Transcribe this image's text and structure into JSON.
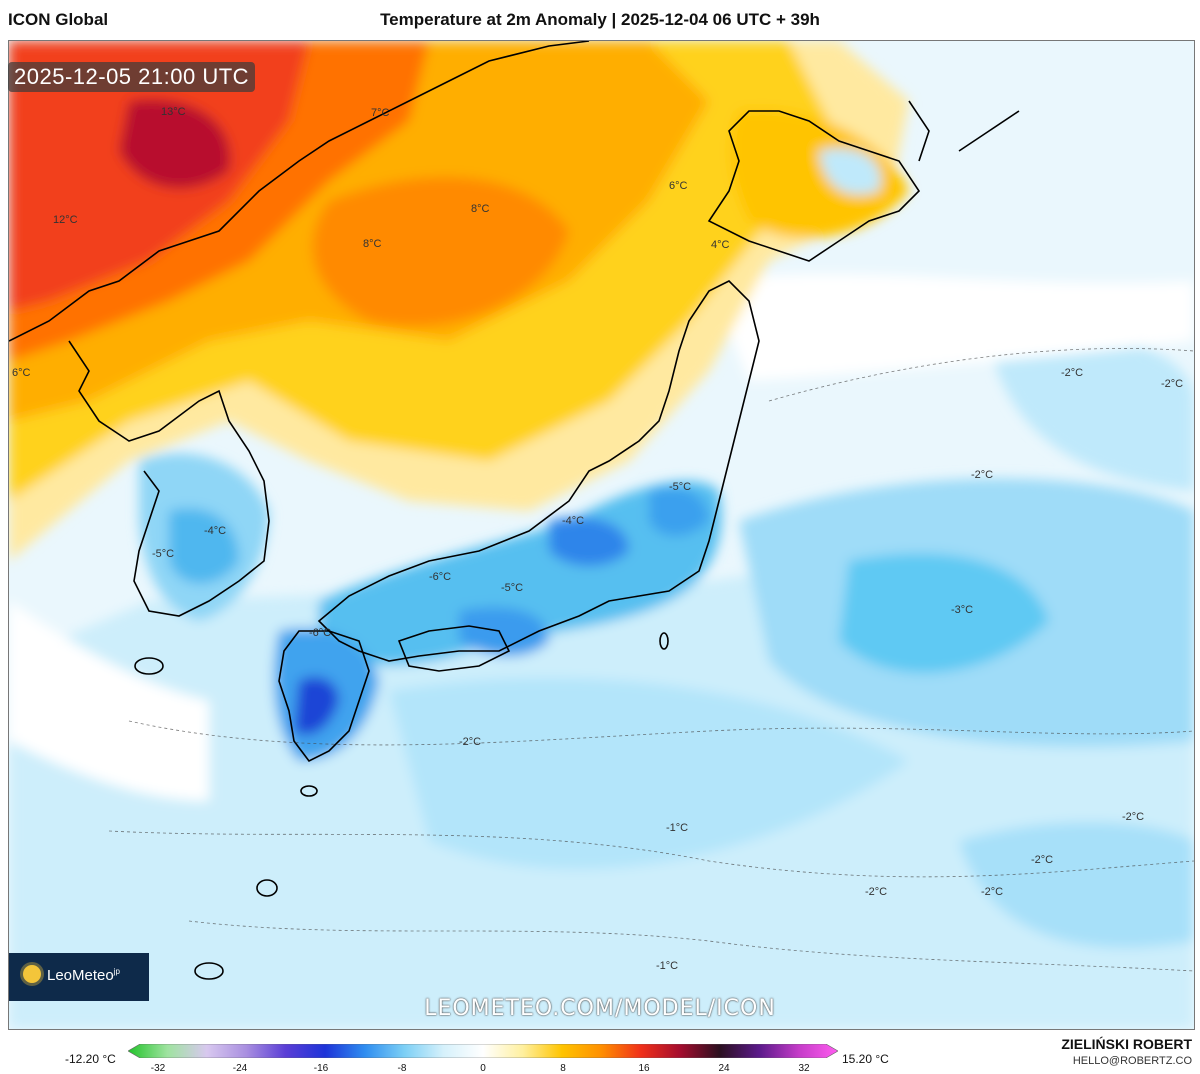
{
  "header": {
    "model": "ICON Global",
    "title": "Temperature at 2m Anomaly | 2025-12-04 06 UTC + 39h"
  },
  "timestamp": "2025-12-05 21:00 UTC",
  "map_labels": [
    {
      "text": "13°C"
    },
    {
      "text": "7°C"
    },
    {
      "text": "12°C"
    },
    {
      "text": "8°C"
    },
    {
      "text": "8°C"
    },
    {
      "text": "6°C"
    },
    {
      "text": "4°C"
    },
    {
      "text": "6°C"
    },
    {
      "text": "-2°C"
    },
    {
      "text": "-2°C"
    },
    {
      "text": "-2°C"
    },
    {
      "text": "-5°C"
    },
    {
      "text": "-4°C"
    },
    {
      "text": "-4°C"
    },
    {
      "text": "-5°C"
    },
    {
      "text": "-5°C"
    },
    {
      "text": "-6°C"
    },
    {
      "text": "-6°C"
    },
    {
      "text": "-3°C"
    },
    {
      "text": "-2°C"
    },
    {
      "text": "-1°C"
    },
    {
      "text": "-1°C"
    },
    {
      "text": "-2°C"
    },
    {
      "text": "-2°C"
    },
    {
      "text": "-2°C"
    },
    {
      "text": "-2°C"
    }
  ],
  "logo": {
    "brand": "LeoMeteo",
    "suffix": "jp"
  },
  "watermark": "LEOMETEO.COM/MODEL/ICON",
  "scale": {
    "min_label": "-12.20 °C",
    "max_label": "15.20 °C",
    "ticks": [
      "-32",
      "-24",
      "-16",
      "-8",
      "0",
      "8",
      "16",
      "24",
      "32"
    ],
    "colors": [
      "#22c32a",
      "#9fe3a0",
      "#d8c8ef",
      "#a98fe0",
      "#5a3ed6",
      "#1e34d8",
      "#2f8df0",
      "#7ccff5",
      "#d6f1fb",
      "#ffffff",
      "#fff0a0",
      "#ffc400",
      "#ff8f00",
      "#f0301a",
      "#a40d2e",
      "#2b1020",
      "#5b1a8a",
      "#c43cc8",
      "#ff5cf0"
    ]
  },
  "author": "ZIELIŃSKI ROBERT",
  "email": "HELLO@ROBERTZ.CO"
}
